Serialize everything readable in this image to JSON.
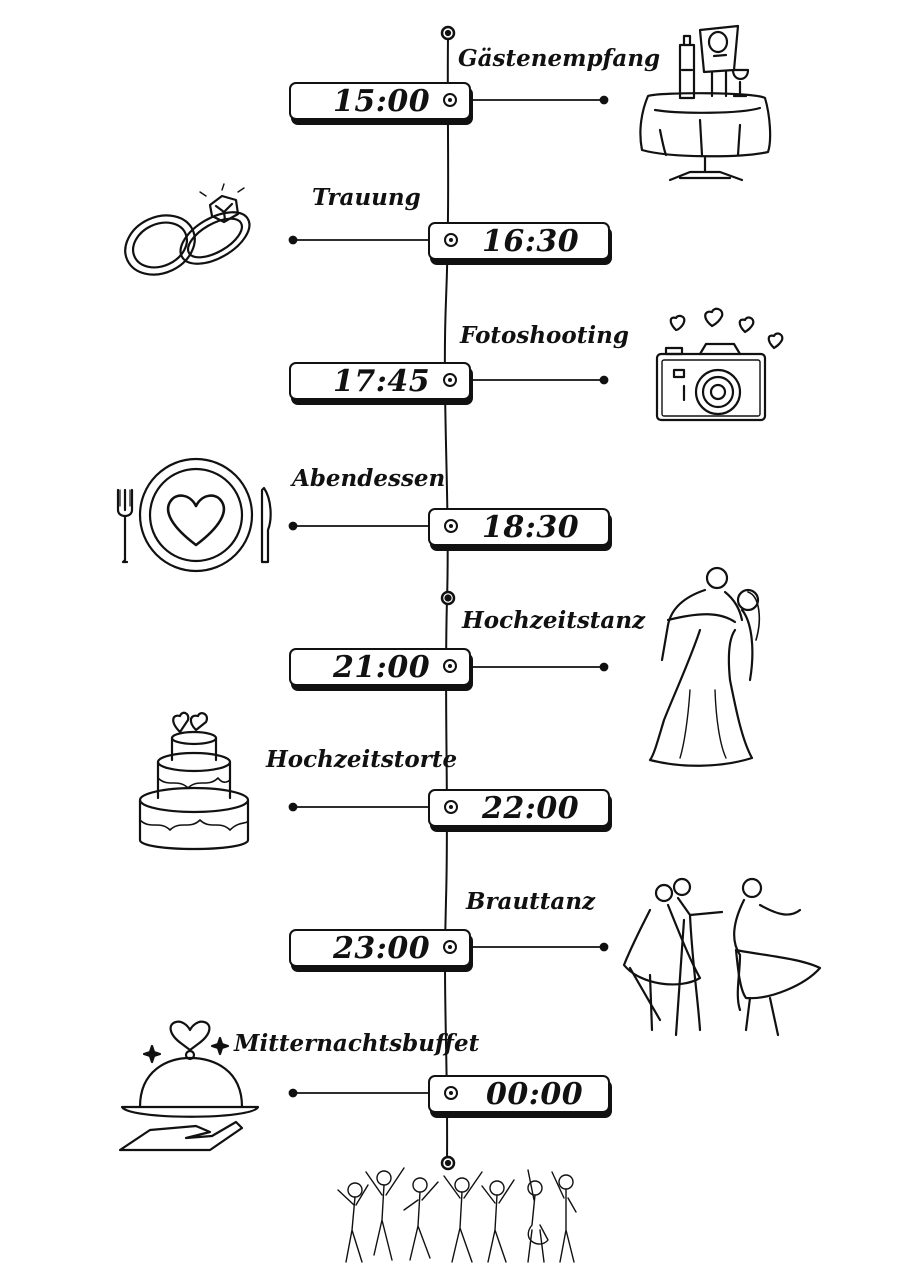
{
  "timeline": {
    "events": [
      {
        "time": "15:00",
        "label": "Gästenempfang",
        "icon": "reception-table-icon"
      },
      {
        "time": "16:30",
        "label": "Trauung",
        "icon": "wedding-rings-icon"
      },
      {
        "time": "17:45",
        "label": "Fotoshooting",
        "icon": "camera-icon"
      },
      {
        "time": "18:30",
        "label": "Abendessen",
        "icon": "dinner-plate-icon"
      },
      {
        "time": "21:00",
        "label": "Hochzeitstanz",
        "icon": "couple-dance-icon"
      },
      {
        "time": "22:00",
        "label": "Hochzeitstorte",
        "icon": "wedding-cake-icon"
      },
      {
        "time": "23:00",
        "label": "Brauttanz",
        "icon": "bride-dance-icon"
      },
      {
        "time": "00:00",
        "label": "Mitternachtsbuffet",
        "icon": "buffet-cloche-icon"
      }
    ],
    "footer_icon": "party-crowd-icon"
  }
}
